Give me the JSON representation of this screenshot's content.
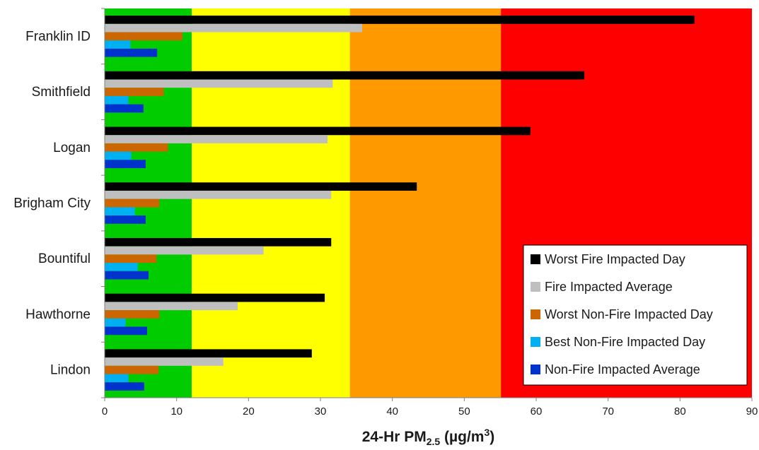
{
  "chart_data": {
    "type": "bar",
    "orientation": "horizontal",
    "title": "",
    "xlabel": "24-Hr PM2.5 (µg/m³)",
    "xlabel_parts": {
      "main": "24-Hr PM",
      "sub": "2.5",
      "unit_open": " (µg/m",
      "sup": "3",
      "unit_close": ")"
    },
    "xlim": [
      0,
      90
    ],
    "xticks": [
      "0",
      "10",
      "20",
      "30",
      "40",
      "50",
      "60",
      "70",
      "80",
      "90"
    ],
    "grid": false,
    "legend_position": "bottom-right",
    "categories": [
      "Franklin ID",
      "Smithfield",
      "Logan",
      "Brigham City",
      "Bountiful",
      "Hawthorne",
      "Lindon"
    ],
    "background_bands": [
      {
        "from": 0,
        "to": 12.1,
        "color": "#00cc00"
      },
      {
        "from": 12.1,
        "to": 34.1,
        "color": "#ffff00"
      },
      {
        "from": 34.1,
        "to": 55.1,
        "color": "#ff9900"
      },
      {
        "from": 55.1,
        "to": 90,
        "color": "#ff0000"
      }
    ],
    "series": [
      {
        "name": "Worst Fire Impacted Day",
        "color": "#000000",
        "values": [
          82.0,
          66.7,
          59.2,
          43.4,
          31.5,
          30.6,
          28.8
        ]
      },
      {
        "name": "Fire Impacted Average",
        "color": "#bfbfbf",
        "values": [
          35.8,
          31.7,
          31.0,
          31.5,
          22.1,
          18.5,
          16.5
        ]
      },
      {
        "name": "Worst Non-Fire Impacted Day",
        "color": "#cc6600",
        "values": [
          10.8,
          8.2,
          8.8,
          7.6,
          7.2,
          7.6,
          7.5
        ]
      },
      {
        "name": "Best Non-Fire Impacted Day",
        "color": "#00b0f0",
        "values": [
          3.6,
          3.3,
          3.7,
          4.2,
          4.6,
          2.9,
          3.3
        ]
      },
      {
        "name": "Non-Fire Impacted Average",
        "color": "#0033cc",
        "values": [
          7.3,
          5.4,
          5.7,
          5.7,
          6.1,
          5.9,
          5.5
        ]
      }
    ]
  }
}
